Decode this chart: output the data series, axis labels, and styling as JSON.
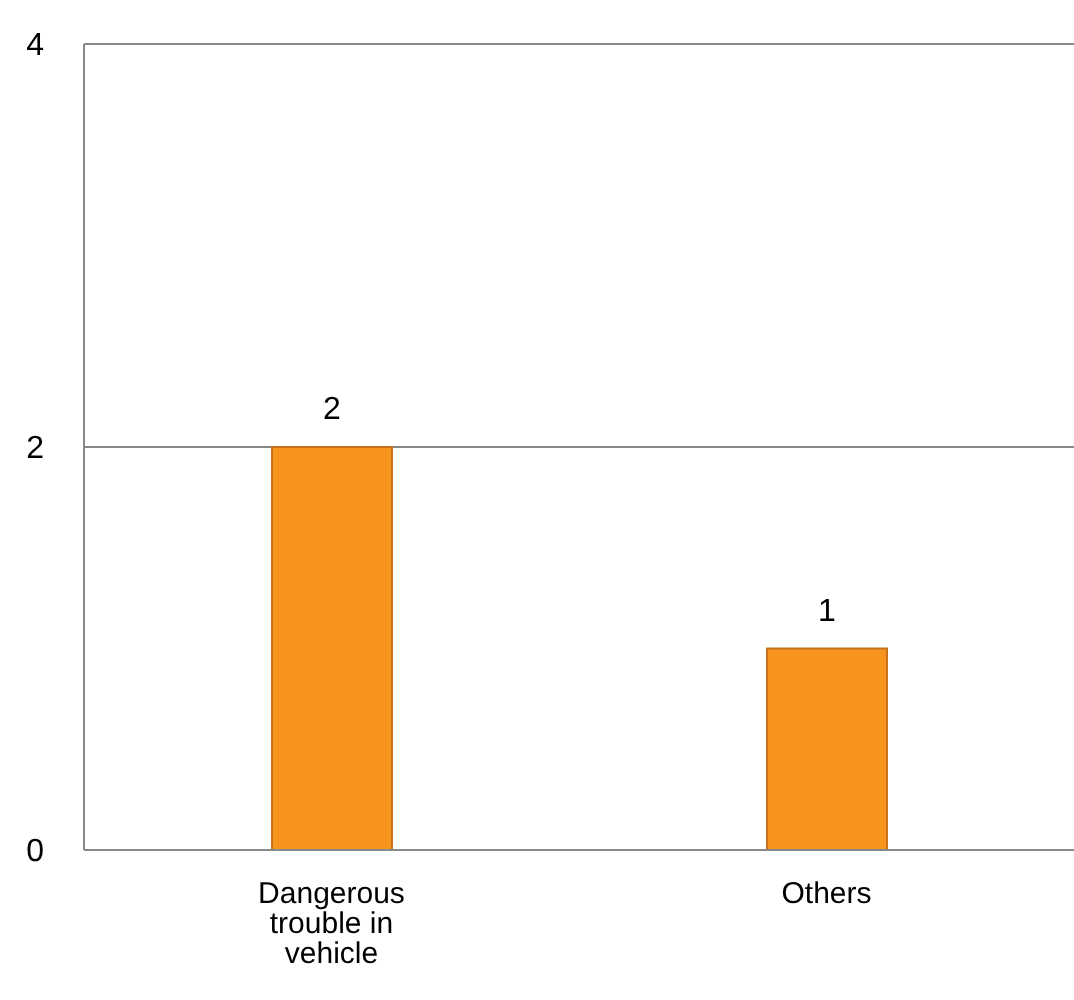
{
  "chart_data": {
    "type": "bar",
    "categories": [
      "Dangerous trouble in vehicle",
      "Others"
    ],
    "values": [
      2,
      1
    ],
    "color": "#f7941d",
    "ylim": [
      0,
      4
    ],
    "yticks": [
      0,
      2,
      4
    ],
    "grid": "y",
    "data_labels": true
  }
}
